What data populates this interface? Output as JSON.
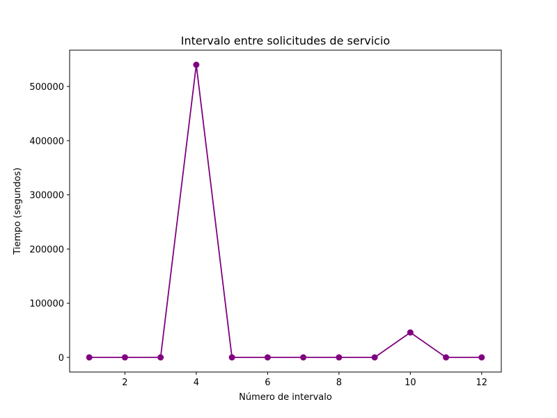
{
  "chart_data": {
    "type": "line",
    "title": "Intervalo entre solicitudes de servicio",
    "xlabel": "Número de intervalo",
    "ylabel": "Tiempo (segundos)",
    "x": [
      1,
      2,
      3,
      4,
      5,
      6,
      7,
      8,
      9,
      10,
      11,
      12
    ],
    "series": [
      {
        "values": [
          0,
          0,
          0,
          540000,
          0,
          0,
          0,
          0,
          0,
          46000,
          0,
          0
        ],
        "color": "#800080",
        "marker": "circle"
      }
    ],
    "xlim": [
      0.45,
      12.55
    ],
    "ylim": [
      -27000,
      567000
    ],
    "xticks": [
      2,
      4,
      6,
      8,
      10,
      12
    ],
    "yticks": [
      0,
      100000,
      200000,
      300000,
      400000,
      500000
    ],
    "grid": false,
    "legend": "none"
  }
}
